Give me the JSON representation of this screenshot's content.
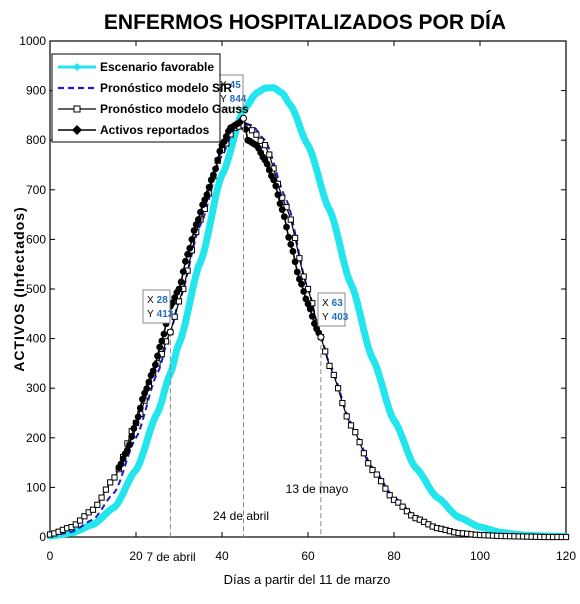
{
  "chart_data": {
    "type": "line",
    "title": "ENFERMOS HOSPITALIZADOS POR DÍA",
    "xlabel": "Días a partir del 11 de marzo",
    "ylabel": "ACTIVOS (Infectados)",
    "xlim": [
      0,
      120
    ],
    "ylim": [
      0,
      1000
    ],
    "xticks": [
      0,
      20,
      40,
      60,
      80,
      100,
      120
    ],
    "yticks": [
      0,
      100,
      200,
      300,
      400,
      500,
      600,
      700,
      800,
      900,
      1000
    ],
    "grid": false,
    "legend_position": "top-left",
    "series": [
      {
        "name": "Escenario favorable",
        "color": "#22e5ee",
        "style": "thick-solid",
        "x": [
          0,
          5,
          10,
          15,
          20,
          25,
          28,
          30,
          35,
          40,
          45,
          48,
          50,
          52,
          54,
          56,
          60,
          65,
          70,
          75,
          80,
          85,
          90,
          95,
          100,
          105,
          110,
          115,
          120
        ],
        "y": [
          2,
          8,
          25,
          60,
          135,
          250,
          330,
          390,
          555,
          730,
          860,
          895,
          905,
          906,
          895,
          870,
          790,
          660,
          510,
          360,
          235,
          140,
          80,
          40,
          20,
          9,
          4,
          2,
          1
        ]
      },
      {
        "name": "Pronóstico modelo SIR",
        "color": "#1c1cc8",
        "style": "dashed",
        "x": [
          0,
          5,
          10,
          15,
          20,
          25,
          28,
          30,
          35,
          40,
          43,
          45,
          47,
          50,
          55,
          60,
          63,
          65,
          70,
          75,
          80,
          85,
          90,
          95,
          100,
          105,
          110,
          115,
          120
        ],
        "y": [
          2,
          10,
          35,
          90,
          200,
          330,
          413,
          475,
          630,
          770,
          825,
          835,
          830,
          800,
          680,
          500,
          403,
          350,
          230,
          140,
          80,
          42,
          20,
          9,
          4,
          2,
          1,
          0,
          0
        ]
      },
      {
        "name": "Pronóstico modelo Gauss",
        "color": "#000000",
        "style": "square-markers",
        "x": [
          0,
          5,
          10,
          15,
          20,
          25,
          28,
          30,
          35,
          40,
          43,
          45,
          47,
          50,
          55,
          60,
          63,
          65,
          70,
          75,
          80,
          85,
          90,
          95,
          100,
          105,
          110,
          115,
          120
        ],
        "y": [
          5,
          20,
          55,
          120,
          230,
          350,
          413,
          475,
          640,
          780,
          825,
          830,
          820,
          790,
          665,
          500,
          403,
          345,
          225,
          135,
          75,
          38,
          18,
          8,
          4,
          2,
          1,
          0,
          0
        ]
      },
      {
        "name": "Activos reportados",
        "color": "#000000",
        "style": "dot-markers",
        "x": [
          16,
          18,
          20,
          22,
          24,
          26,
          28,
          30,
          32,
          34,
          36,
          38,
          40,
          42,
          44,
          45,
          46,
          48,
          50,
          52,
          54,
          56,
          58,
          60,
          62,
          63
        ],
        "y": [
          140,
          175,
          230,
          290,
          335,
          395,
          465,
          500,
          570,
          630,
          680,
          730,
          790,
          825,
          835,
          844,
          800,
          790,
          760,
          720,
          660,
          590,
          520,
          470,
          420,
          403
        ]
      }
    ],
    "datatips": [
      {
        "x_label": "X",
        "x_value": "28",
        "y_label": "Y",
        "y_value": "413",
        "x": 28,
        "y": 413
      },
      {
        "x_label": "X",
        "x_value": "45",
        "y_label": "Y",
        "y_value": "844",
        "x": 45,
        "y": 844
      },
      {
        "x_label": "X",
        "x_value": "63",
        "y_label": "Y",
        "y_value": "403",
        "x": 63,
        "y": 403
      }
    ],
    "date_annotations": [
      {
        "text": "7 de abril",
        "x": 28
      },
      {
        "text": "24 de abril",
        "x": 45
      },
      {
        "text": "13 de mayo",
        "x": 63
      }
    ]
  }
}
